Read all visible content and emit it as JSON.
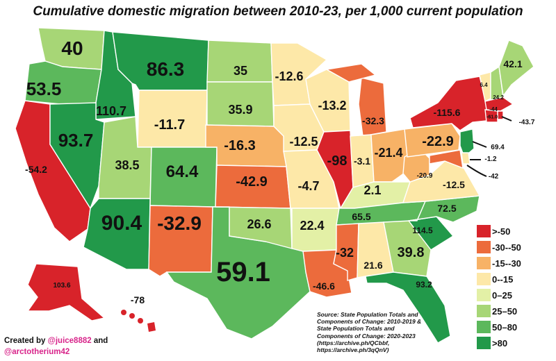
{
  "title": "Cumulative domestic migration between 2010-23, per 1,000 current population",
  "colors": {
    "gt_neg50": "#d8232a",
    "neg30_neg50": "#ec6b3c",
    "neg15_neg30": "#f7b266",
    "zero_neg15": "#fde8a8",
    "zero_25": "#e3f0a6",
    "p25_50": "#a7d676",
    "p50_80": "#5cb85c",
    "gt80": "#22994a"
  },
  "legend": [
    {
      "label": ">-50",
      "color": "#d8232a"
    },
    {
      "label": "-30--50",
      "color": "#ec6b3c"
    },
    {
      "label": "-15--30",
      "color": "#f7b266"
    },
    {
      "label": "0--15",
      "color": "#fde8a8"
    },
    {
      "label": "0–25",
      "color": "#e3f0a6"
    },
    {
      "label": "25–50",
      "color": "#a7d676"
    },
    {
      "label": "50–80",
      "color": "#5cb85c"
    },
    {
      "label": ">80",
      "color": "#22994a"
    }
  ],
  "states": {
    "WA": "40",
    "OR": "53.5",
    "CA": "-54.2",
    "ID": "110.7",
    "NV": "93.7",
    "MT": "86.3",
    "WY": "-11.7",
    "UT": "38.5",
    "CO": "64.4",
    "AZ": "90.4",
    "NM": "-32.9",
    "TX": "59.1",
    "ND": "35",
    "SD": "35.9",
    "NE": "-16.3",
    "KS": "-42.9",
    "OK": "26.6",
    "MN": "-12.6",
    "IA": "-12.5",
    "MO": "-4.7",
    "AR": "22.4",
    "LA": "-46.6",
    "WI": "-13.2",
    "IL": "-98",
    "MI": "-32.3",
    "IN": "-3.1",
    "OH": "-21.4",
    "KY": "2.1",
    "TN": "65.5",
    "MS": "-32",
    "AL": "21.6",
    "GA": "39.8",
    "FL": "93.2",
    "SC": "114.5",
    "NC": "72.5",
    "VA": "-12.5",
    "WV": "-20.9",
    "PA": "-22.9",
    "NY": "-115.6",
    "VT": "6.4",
    "NH": "24.2",
    "ME": "42.1",
    "MA": "-44",
    "CT": "-61.0",
    "RI": "-43.7",
    "NJ": "69.4",
    "DE": "-1.2",
    "MD": "-42",
    "AK": "103.6",
    "HI": "-78"
  },
  "source": "Source: State Population Totals and Components of Change: 2010-2019 & State Population Totals and Components of Change: 2020-2023 (https://archive.ph/QCbbf, https://archive.ph/3qQnV)",
  "credit": {
    "prefix": "Created by ",
    "author1": "@juice8882",
    "mid": " and",
    "author2": "@arctotherium42"
  }
}
